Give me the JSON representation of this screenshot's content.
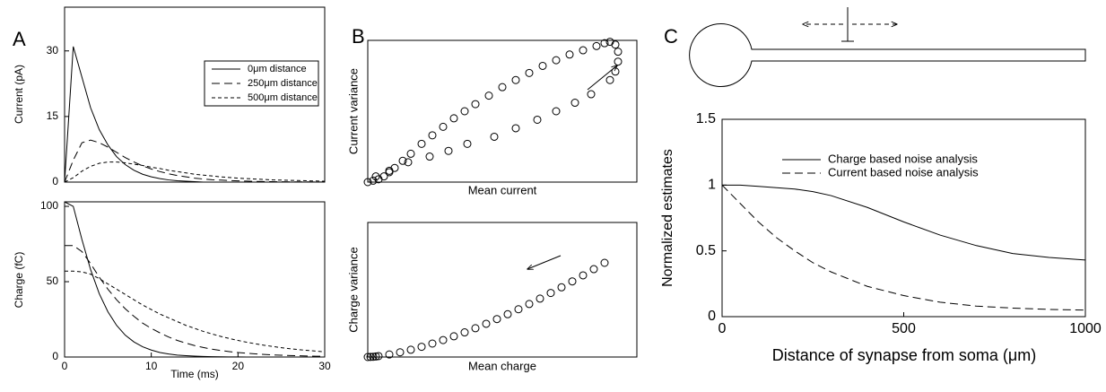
{
  "chart_data": [
    {
      "type": "line",
      "panel": "A",
      "ylabel": "Current (pA)",
      "x": [
        0,
        1,
        2,
        3,
        4,
        5,
        6,
        7,
        8,
        9,
        10,
        11,
        12,
        13,
        14,
        15,
        16,
        17,
        18,
        19,
        20,
        21,
        22,
        23,
        24,
        25,
        26,
        27,
        28,
        29,
        30
      ],
      "series": [
        {
          "name": "0μm distance",
          "color": "#000000",
          "line_style": "solid",
          "values": [
            0,
            31,
            24,
            17,
            12,
            8.5,
            5.8,
            4,
            2.7,
            1.8,
            1.2,
            0.8,
            0.5,
            0.3,
            0.2,
            0.1,
            0,
            0,
            0,
            0,
            0,
            0,
            0,
            0,
            0,
            0,
            0,
            0,
            0,
            0,
            0
          ]
        },
        {
          "name": "250μm distance",
          "color": "#000000",
          "line_style": "dashed",
          "values": [
            0,
            5,
            9,
            9.6,
            9,
            8,
            6.8,
            5.6,
            4.6,
            3.7,
            3,
            2.4,
            1.9,
            1.5,
            1.2,
            0.9,
            0.7,
            0.55,
            0.45,
            0.35,
            0.28,
            0.22,
            0.17,
            0.13,
            0.1,
            0.08,
            0.06,
            0.05,
            0.04,
            0.03,
            0.02
          ]
        },
        {
          "name": "500μm distance",
          "color": "#000000",
          "line_style": "dotted",
          "values": [
            0,
            1,
            2.5,
            3.6,
            4.3,
            4.6,
            4.6,
            4.4,
            4.1,
            3.8,
            3.4,
            3.1,
            2.7,
            2.4,
            2.1,
            1.8,
            1.6,
            1.4,
            1.2,
            1.05,
            0.9,
            0.8,
            0.7,
            0.6,
            0.5,
            0.45,
            0.4,
            0.35,
            0.3,
            0.25,
            0.2
          ]
        }
      ],
      "xlim": [
        0,
        30
      ],
      "ylim": [
        0,
        40
      ],
      "yticks": [
        0,
        15,
        30
      ],
      "legend": "upper right"
    },
    {
      "type": "line",
      "ylabel": "Charge (fC)",
      "xlabel": "Time (ms)",
      "x": [
        0,
        1,
        2,
        3,
        4,
        5,
        6,
        7,
        8,
        9,
        10,
        11,
        12,
        13,
        14,
        15,
        16,
        17,
        18,
        19,
        20,
        21,
        22,
        23,
        24,
        25,
        26,
        27,
        28,
        29,
        30
      ],
      "series": [
        {
          "color": "#000000",
          "line_style": "solid",
          "values": [
            103,
            100,
            78,
            58,
            42,
            30,
            21,
            14.5,
            10,
            6.8,
            4.6,
            3,
            2,
            1.3,
            0.9,
            0.6,
            0.4,
            0.25,
            0.15,
            0.1,
            0.05,
            0,
            0,
            0,
            0,
            0,
            0,
            0,
            0,
            0,
            0
          ]
        },
        {
          "color": "#000000",
          "line_style": "dashed",
          "values": [
            74,
            74,
            70,
            62,
            53,
            45,
            38,
            32,
            27,
            22.5,
            19,
            16,
            13.3,
            11,
            9.2,
            7.6,
            6.3,
            5.2,
            4.3,
            3.6,
            3,
            2.5,
            2.1,
            1.7,
            1.4,
            1.2,
            1,
            0.8,
            0.65,
            0.55,
            0.45
          ]
        },
        {
          "color": "#000000",
          "line_style": "dotted",
          "values": [
            57,
            57,
            56.5,
            55,
            52,
            48.5,
            45,
            41.5,
            38,
            34.5,
            31.5,
            28.5,
            26,
            23.5,
            21,
            19,
            17,
            15.3,
            13.7,
            12.3,
            11,
            9.8,
            8.8,
            7.8,
            7,
            6.2,
            5.5,
            4.9,
            4.4,
            3.9,
            3.4
          ]
        }
      ],
      "xlim": [
        0,
        30
      ],
      "ylim": [
        0,
        103
      ],
      "xticks": [
        0,
        10,
        20,
        30
      ],
      "yticks": [
        0,
        50,
        100
      ]
    },
    {
      "type": "scatter",
      "panel": "B",
      "ylabel": "Current variance",
      "xlabel": "Mean current",
      "color": "#000000",
      "x": [
        0,
        2,
        4,
        6,
        8,
        10,
        13,
        16,
        20,
        24,
        28,
        32,
        36,
        40,
        45,
        50,
        55,
        60,
        65,
        70,
        75,
        80,
        85,
        88,
        90,
        92,
        93,
        93,
        92,
        90,
        83,
        77,
        70,
        63,
        55,
        47,
        37,
        30,
        23,
        15,
        8,
        3
      ],
      "values": [
        0,
        1,
        2,
        4,
        7,
        10,
        15,
        20,
        27,
        33,
        39,
        45,
        50,
        55,
        61,
        67,
        72,
        77,
        82,
        86,
        90,
        93,
        96,
        98,
        99,
        97,
        92,
        85,
        78,
        72,
        62,
        56,
        50,
        44,
        38,
        32,
        27,
        22,
        18,
        14,
        8,
        4
      ],
      "xlim": [
        0,
        100
      ],
      "ylim": [
        0,
        100
      ]
    },
    {
      "type": "scatter",
      "ylabel": "Charge variance",
      "xlabel": "Mean charge",
      "color": "#000000",
      "x": [
        0,
        1,
        2,
        3,
        4,
        8,
        12,
        16,
        20,
        24,
        28,
        32,
        36,
        40,
        44,
        48,
        52,
        56,
        60,
        64,
        68,
        72,
        76,
        80,
        84,
        88
      ],
      "values": [
        0,
        0.1,
        0.2,
        0.4,
        0.68,
        1.9,
        3.5,
        5.4,
        7.6,
        10,
        12.6,
        15.4,
        18.3,
        21.4,
        24.7,
        28.2,
        31.8,
        35.5,
        39.4,
        43.4,
        47.6,
        51.8,
        56.2,
        60.7,
        65.3,
        70
      ],
      "xlim": [
        0,
        100
      ],
      "ylim": [
        0,
        100
      ]
    },
    {
      "type": "line",
      "panel": "C",
      "ylabel": "Normalized estimates",
      "xlabel": "Distance of synapse from soma (μm)",
      "x": [
        0,
        50,
        100,
        150,
        200,
        250,
        300,
        400,
        500,
        600,
        700,
        800,
        900,
        1000
      ],
      "series": [
        {
          "name": "Charge based noise analysis",
          "color": "#000000",
          "line_style": "solid",
          "values": [
            1,
            1,
            0.99,
            0.98,
            0.97,
            0.95,
            0.92,
            0.83,
            0.72,
            0.62,
            0.54,
            0.48,
            0.45,
            0.43
          ]
        },
        {
          "name": "Current based noise analysis",
          "color": "#000000",
          "line_style": "dashed",
          "values": [
            1,
            0.86,
            0.72,
            0.6,
            0.5,
            0.41,
            0.34,
            0.23,
            0.16,
            0.11,
            0.08,
            0.065,
            0.055,
            0.05
          ]
        }
      ],
      "xlim": [
        0,
        1000
      ],
      "ylim": [
        0,
        1.5
      ],
      "xticks": [
        0,
        500,
        1000
      ],
      "yticks": [
        0,
        0.5,
        1,
        1.5
      ],
      "legend": "upper left"
    }
  ]
}
